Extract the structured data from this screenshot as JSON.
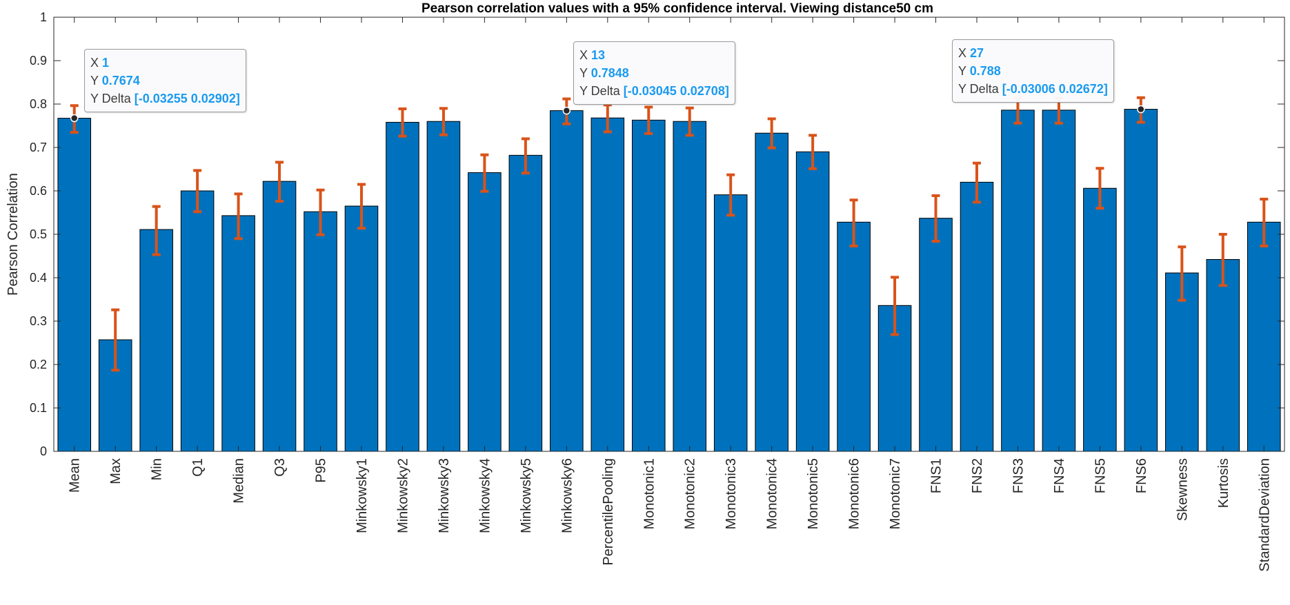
{
  "chart_data": {
    "type": "bar",
    "title": "Pearson correlation values with a 95% confidence interval. Viewing distance50 cm",
    "xlabel": "",
    "ylabel": "Pearson Correlation",
    "ylim": [
      0,
      1
    ],
    "yticks": [
      "0",
      "0.1",
      "0.2",
      "0.3",
      "0.4",
      "0.5",
      "0.6",
      "0.7",
      "0.8",
      "0.9",
      "1"
    ],
    "grid": false,
    "bar_color": "#0072BD",
    "errorbar_color": "#D95319",
    "categories": [
      "Mean",
      "Max",
      "Min",
      "Q1",
      "Median",
      "Q3",
      "P95",
      "Minkowsky1",
      "Minkowsky2",
      "Minkowsky3",
      "Minkowsky4",
      "Minkowsky5",
      "Minkowsky6",
      "PercentilePooling",
      "Monotonic1",
      "Monotonic2",
      "Monotonic3",
      "Monotonic4",
      "Monotonic5",
      "Monotonic6",
      "Monotonic7",
      "FNS1",
      "FNS2",
      "FNS3",
      "FNS4",
      "FNS5",
      "FNS6",
      "Skewness",
      "Kurtosis",
      "StandardDeviation"
    ],
    "values": [
      0.7674,
      0.257,
      0.511,
      0.6,
      0.543,
      0.622,
      0.552,
      0.565,
      0.758,
      0.76,
      0.642,
      0.682,
      0.7848,
      0.768,
      0.763,
      0.76,
      0.591,
      0.733,
      0.69,
      0.528,
      0.336,
      0.537,
      0.62,
      0.786,
      0.786,
      0.606,
      0.788,
      0.411,
      0.442,
      0.528
    ],
    "err_low": [
      0.03255,
      0.07,
      0.058,
      0.048,
      0.053,
      0.046,
      0.053,
      0.051,
      0.032,
      0.031,
      0.043,
      0.041,
      0.03045,
      0.032,
      0.031,
      0.032,
      0.047,
      0.034,
      0.039,
      0.055,
      0.067,
      0.053,
      0.046,
      0.03,
      0.03,
      0.046,
      0.03006,
      0.063,
      0.06,
      0.055
    ],
    "err_high": [
      0.02902,
      0.069,
      0.053,
      0.047,
      0.05,
      0.044,
      0.05,
      0.05,
      0.031,
      0.03,
      0.041,
      0.038,
      0.02708,
      0.03,
      0.03,
      0.031,
      0.046,
      0.033,
      0.038,
      0.051,
      0.065,
      0.052,
      0.044,
      0.028,
      0.028,
      0.046,
      0.02672,
      0.06,
      0.058,
      0.053
    ],
    "datatips": [
      {
        "x_label": "X",
        "x": "1",
        "y_label": "Y",
        "y": "0.7674",
        "d_label": "Y Delta",
        "d": "[-0.03255 0.02902]",
        "index": 0
      },
      {
        "x_label": "X",
        "x": "13",
        "y_label": "Y",
        "y": "0.7848",
        "d_label": "Y Delta",
        "d": "[-0.03045 0.02708]",
        "index": 12
      },
      {
        "x_label": "X",
        "x": "27",
        "y_label": "Y",
        "y": "0.788",
        "d_label": "Y Delta",
        "d": "[-0.03006 0.02672]",
        "index": 26
      }
    ]
  }
}
